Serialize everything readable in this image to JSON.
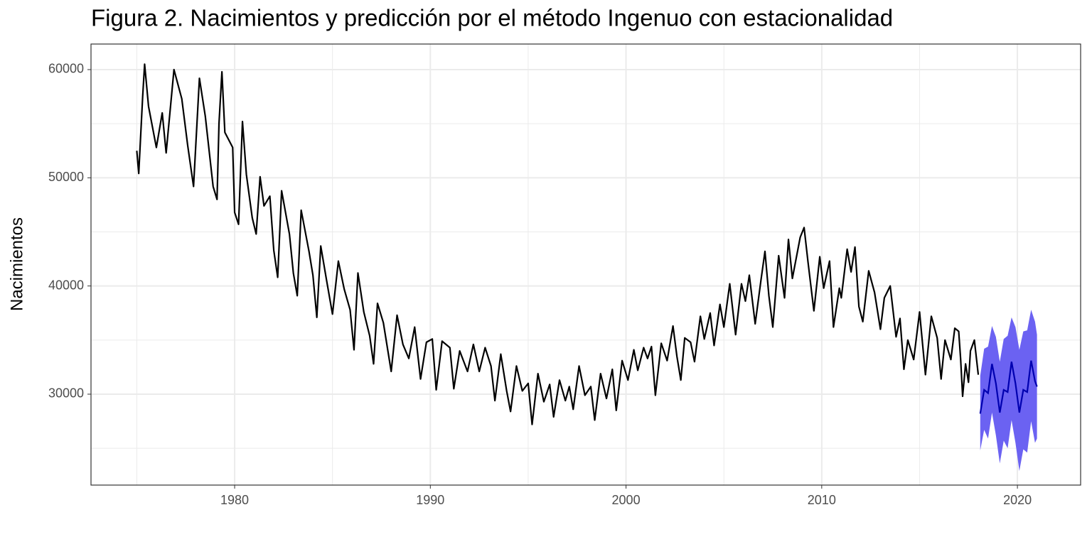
{
  "chart_data": {
    "type": "line",
    "title": "Figura 2. Nacimientos y predicción por el método Ingenuo con estacionalidad",
    "ylabel": "Nacimientos",
    "xlim": [
      1972.66,
      2023.23
    ],
    "ylim": [
      21597,
      62363
    ],
    "xticks": [
      1980,
      1990,
      2000,
      2010,
      2020
    ],
    "yticks": [
      30000,
      40000,
      50000,
      60000
    ],
    "xminor": [
      1975,
      1985,
      1995,
      2005,
      2015
    ],
    "yminor": [
      25000,
      35000,
      45000,
      55000
    ],
    "grid": true,
    "series": [
      {
        "color": "#000000",
        "x": [
          1975.0,
          1975.1,
          1975.3,
          1975.4,
          1975.6,
          1976.0,
          1976.3,
          1976.5,
          1976.9,
          1977.3,
          1977.6,
          1977.9,
          1978.2,
          1978.5,
          1978.9,
          1979.1,
          1979.2,
          1979.35,
          1979.5,
          1979.9,
          1980.0,
          1980.2,
          1980.4,
          1980.6,
          1980.9,
          1981.1,
          1981.3,
          1981.5,
          1981.8,
          1982.0,
          1982.2,
          1982.4,
          1982.8,
          1983.0,
          1983.2,
          1983.4,
          1983.8,
          1984.0,
          1984.2,
          1984.4,
          1984.7,
          1985.0,
          1985.3,
          1985.6,
          1985.9,
          1986.1,
          1986.3,
          1986.6,
          1986.9,
          1987.1,
          1987.3,
          1987.6,
          1988.0,
          1988.3,
          1988.6,
          1988.9,
          1989.2,
          1989.5,
          1989.8,
          1990.1,
          1990.3,
          1990.6,
          1991.0,
          1991.2,
          1991.5,
          1991.9,
          1992.2,
          1992.5,
          1992.8,
          1993.1,
          1993.3,
          1993.6,
          1993.9,
          1994.1,
          1994.4,
          1994.7,
          1995.0,
          1995.2,
          1995.5,
          1995.8,
          1996.1,
          1996.3,
          1996.6,
          1996.9,
          1997.1,
          1997.3,
          1997.6,
          1997.9,
          1998.2,
          1998.4,
          1998.7,
          1999.0,
          1999.3,
          1999.5,
          1999.8,
          2000.1,
          2000.4,
          2000.6,
          2000.9,
          2001.1,
          2001.3,
          2001.5,
          2001.8,
          2002.1,
          2002.4,
          2002.6,
          2002.8,
          2003.0,
          2003.3,
          2003.5,
          2003.8,
          2004.0,
          2004.3,
          2004.5,
          2004.8,
          2005.0,
          2005.3,
          2005.6,
          2005.9,
          2006.1,
          2006.3,
          2006.6,
          2006.9,
          2007.1,
          2007.3,
          2007.5,
          2007.8,
          2008.1,
          2008.3,
          2008.5,
          2008.9,
          2009.1,
          2009.3,
          2009.6,
          2009.9,
          2010.1,
          2010.4,
          2010.6,
          2010.9,
          2011.0,
          2011.3,
          2011.5,
          2011.7,
          2011.9,
          2012.1,
          2012.4,
          2012.7,
          2013.0,
          2013.2,
          2013.5,
          2013.8,
          2014.0,
          2014.2,
          2014.4,
          2014.7,
          2015.0,
          2015.3,
          2015.6,
          2015.9,
          2016.1,
          2016.3,
          2016.6,
          2016.8,
          2017.0,
          2017.1,
          2017.2,
          2017.35,
          2017.5,
          2017.6,
          2017.8,
          2018.0
        ],
        "values": [
          52500,
          50400,
          57500,
          60500,
          56600,
          52800,
          56000,
          52300,
          60000,
          57300,
          53000,
          49200,
          59200,
          55700,
          49200,
          48000,
          55000,
          59800,
          54200,
          52800,
          46800,
          45700,
          55200,
          50300,
          46300,
          44800,
          50100,
          47400,
          48300,
          43300,
          40800,
          48800,
          44800,
          41200,
          39100,
          47000,
          43200,
          41000,
          37100,
          43700,
          40500,
          37400,
          42300,
          39700,
          37800,
          34100,
          41200,
          37600,
          35400,
          32800,
          38400,
          36600,
          32100,
          37300,
          34600,
          33300,
          36200,
          31400,
          34800,
          35100,
          30400,
          34900,
          34300,
          30500,
          34000,
          32100,
          34600,
          32100,
          34300,
          32600,
          29400,
          33700,
          30300,
          28400,
          32600,
          30300,
          31000,
          27200,
          31900,
          29300,
          30900,
          27900,
          31300,
          29400,
          30700,
          28600,
          32600,
          29900,
          30700,
          27600,
          31900,
          29600,
          32300,
          28500,
          33100,
          31300,
          34100,
          32200,
          34300,
          33300,
          34400,
          29900,
          34700,
          33100,
          36300,
          33500,
          31300,
          35200,
          34800,
          33000,
          37200,
          35100,
          37500,
          34500,
          38300,
          36200,
          40200,
          35500,
          40200,
          38600,
          41000,
          36500,
          40600,
          43200,
          39100,
          36200,
          42800,
          38900,
          44300,
          40700,
          44500,
          45400,
          42200,
          37700,
          42700,
          39800,
          42300,
          36200,
          39800,
          38900,
          43400,
          41300,
          43600,
          38100,
          36700,
          41400,
          39400,
          36000,
          38900,
          40000,
          35300,
          37000,
          32300,
          35000,
          33200,
          37600,
          31800,
          37200,
          35200,
          31400,
          35000,
          33200,
          36100,
          35800,
          33200,
          29800,
          32800,
          31100,
          34000,
          35000,
          31800
        ]
      }
    ],
    "forecast": {
      "color": "#0000b0",
      "band_color": "#6b62f2",
      "x": [
        2018.1,
        2018.3,
        2018.5,
        2018.7,
        2018.9,
        2019.1,
        2019.3,
        2019.5,
        2019.7,
        2019.9,
        2020.1,
        2020.3,
        2020.5,
        2020.7,
        2020.9,
        2021.0
      ],
      "values": [
        28200,
        30400,
        30100,
        32800,
        31000,
        28300,
        30400,
        30200,
        33000,
        31000,
        28300,
        30400,
        30200,
        33100,
        31200,
        30700
      ],
      "lower": [
        24800,
        26700,
        25900,
        28300,
        26200,
        23600,
        25700,
        25000,
        27600,
        25500,
        22900,
        24900,
        24600,
        27500,
        25500,
        25900
      ],
      "upper": [
        31700,
        34200,
        34400,
        36300,
        35300,
        33000,
        35100,
        35400,
        37100,
        36200,
        34100,
        35800,
        35900,
        37800,
        36700,
        35500
      ]
    }
  }
}
